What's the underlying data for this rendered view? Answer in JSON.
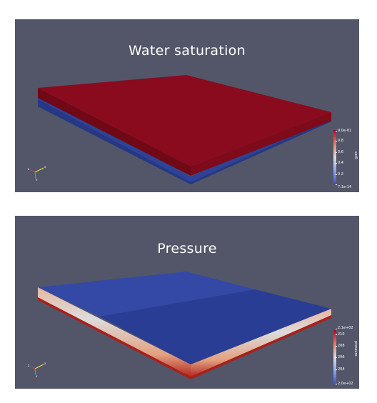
{
  "panels": [
    {
      "title": "Water saturation",
      "colorbar": {
        "name": "sat0",
        "ticks": [
          "9.0e-01",
          "0.8",
          "0.6",
          "0.4",
          "0.2",
          "7.1e-14"
        ],
        "colors": [
          "#b40426",
          "#3b4cc0"
        ]
      },
      "top_color": "#8a0b1e",
      "bottom_color": "#2c3f95"
    },
    {
      "title": "Pressure",
      "colorbar": {
        "name": "pressure",
        "ticks": [
          "2.1e+02",
          "210",
          "208",
          "206",
          "204",
          "2.0e+02"
        ],
        "colors": [
          "#b40426",
          "#3b4cc0"
        ]
      },
      "top_color": "#2f48a8",
      "bottom_color": "#b0251f"
    }
  ],
  "axes_labels": [
    "x",
    "y",
    "z"
  ],
  "colors": {
    "background": "#535669",
    "text": "#ffffff"
  }
}
